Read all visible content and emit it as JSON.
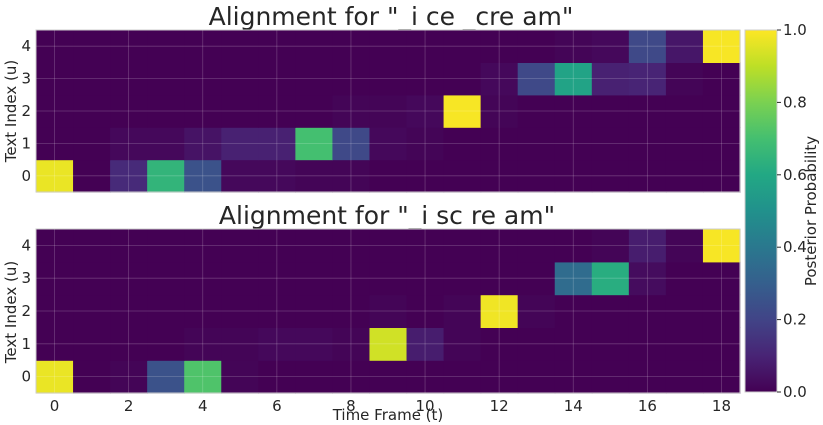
{
  "chart_data": [
    {
      "type": "heatmap",
      "title": "Alignment for \"_i ce _cre am\"",
      "xlabel": "",
      "ylabel": "Text Index (u)",
      "x": [
        0,
        1,
        2,
        3,
        4,
        5,
        6,
        7,
        8,
        9,
        10,
        11,
        12,
        13,
        14,
        15,
        16,
        17,
        18
      ],
      "y": [
        0,
        1,
        2,
        3,
        4
      ],
      "y_ticks": [
        "0",
        "1",
        "2",
        "3",
        "4"
      ],
      "values": [
        [
          0.97,
          0.0,
          0.12,
          0.65,
          0.25,
          0.02,
          0.02,
          0.01,
          0.01,
          0.0,
          0.0,
          0.0,
          0.0,
          0.0,
          0.0,
          0.0,
          0.0,
          0.0,
          0.0
        ],
        [
          0.0,
          0.0,
          0.02,
          0.02,
          0.05,
          0.09,
          0.09,
          0.7,
          0.22,
          0.02,
          0.01,
          0.0,
          0.0,
          0.0,
          0.0,
          0.0,
          0.0,
          0.0,
          0.0
        ],
        [
          0.0,
          0.0,
          0.0,
          0.0,
          0.0,
          0.0,
          0.0,
          0.0,
          0.01,
          0.01,
          0.02,
          0.99,
          0.01,
          0.0,
          0.0,
          0.0,
          0.0,
          0.0,
          0.0
        ],
        [
          0.0,
          0.0,
          0.0,
          0.0,
          0.0,
          0.0,
          0.0,
          0.0,
          0.0,
          0.0,
          0.0,
          0.0,
          0.02,
          0.22,
          0.58,
          0.09,
          0.1,
          0.01,
          0.0
        ],
        [
          0.0,
          0.0,
          0.0,
          0.0,
          0.0,
          0.0,
          0.0,
          0.0,
          0.0,
          0.0,
          0.0,
          0.0,
          0.0,
          0.0,
          0.01,
          0.02,
          0.22,
          0.06,
          0.99
        ]
      ]
    },
    {
      "type": "heatmap",
      "title": "Alignment for \"_i sc re am\"",
      "xlabel": "Time Frame (t)",
      "ylabel": "Text Index (u)",
      "x": [
        0,
        1,
        2,
        3,
        4,
        5,
        6,
        7,
        8,
        9,
        10,
        11,
        12,
        13,
        14,
        15,
        16,
        17,
        18
      ],
      "x_ticks": [
        "0",
        "2",
        "4",
        "6",
        "8",
        "10",
        "12",
        "14",
        "16",
        "18"
      ],
      "y": [
        0,
        1,
        2,
        3,
        4
      ],
      "y_ticks": [
        "0",
        "1",
        "2",
        "3",
        "4"
      ],
      "values": [
        [
          0.97,
          0.0,
          0.01,
          0.25,
          0.72,
          0.01,
          0.0,
          0.0,
          0.0,
          0.0,
          0.0,
          0.0,
          0.0,
          0.0,
          0.0,
          0.0,
          0.0,
          0.0,
          0.0
        ],
        [
          0.0,
          0.0,
          0.0,
          0.0,
          0.01,
          0.01,
          0.02,
          0.02,
          0.01,
          0.93,
          0.08,
          0.01,
          0.0,
          0.0,
          0.0,
          0.0,
          0.0,
          0.0,
          0.0
        ],
        [
          0.0,
          0.0,
          0.0,
          0.0,
          0.0,
          0.0,
          0.0,
          0.0,
          0.0,
          0.01,
          0.0,
          0.01,
          0.98,
          0.01,
          0.0,
          0.0,
          0.0,
          0.0,
          0.0
        ],
        [
          0.0,
          0.0,
          0.0,
          0.0,
          0.0,
          0.0,
          0.0,
          0.0,
          0.0,
          0.0,
          0.0,
          0.0,
          0.0,
          0.0,
          0.35,
          0.62,
          0.03,
          0.0,
          0.0
        ],
        [
          0.0,
          0.0,
          0.0,
          0.0,
          0.0,
          0.0,
          0.0,
          0.0,
          0.0,
          0.0,
          0.0,
          0.0,
          0.0,
          0.0,
          0.0,
          0.01,
          0.08,
          0.01,
          0.99
        ]
      ]
    }
  ],
  "colorbar": {
    "label": "Posterior Probability",
    "colormap": "viridis",
    "range": [
      0.0,
      1.0
    ],
    "ticks": [
      "0.0",
      "0.2",
      "0.4",
      "0.6",
      "0.8",
      "1.0"
    ]
  }
}
